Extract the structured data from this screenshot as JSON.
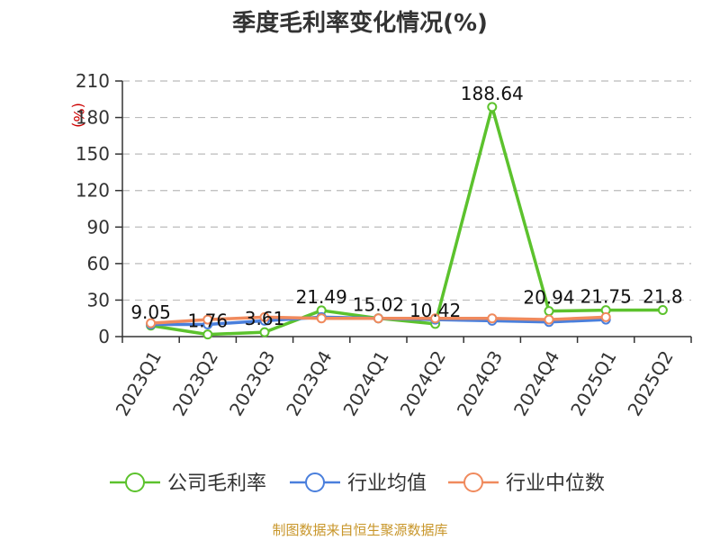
{
  "chart_data": {
    "type": "line",
    "title": "季度毛利率变化情况(%)",
    "ylabel": "(%)",
    "xlabel": "",
    "ylim": [
      0,
      210
    ],
    "yticks": [
      0,
      30,
      60,
      90,
      120,
      150,
      180,
      210
    ],
    "grid": true,
    "legend_position": "bottom",
    "categories": [
      "2023Q1",
      "2023Q2",
      "2023Q3",
      "2023Q4",
      "2024Q1",
      "2024Q2",
      "2024Q3",
      "2024Q4",
      "2025Q1",
      "2025Q2"
    ],
    "series": [
      {
        "name": "公司毛利率",
        "color": "#5cc22d",
        "values": [
          9.05,
          1.76,
          3.61,
          21.49,
          15.02,
          10.42,
          188.64,
          20.94,
          21.75,
          21.8
        ],
        "labels": [
          "9.05",
          "1.76",
          "3.61",
          "21.49",
          "15.02",
          "10.42",
          "188.64",
          "20.94",
          "21.75",
          "21.8"
        ]
      },
      {
        "name": "行业均值",
        "color": "#4a7fdc",
        "values": [
          10,
          10,
          13,
          16,
          15,
          14,
          13,
          12,
          14,
          null
        ]
      },
      {
        "name": "行业中位数",
        "color": "#f08a5d",
        "values": [
          11,
          14,
          16,
          15,
          15,
          15,
          15,
          14,
          16,
          null
        ]
      }
    ],
    "source": "制图数据来自恒生聚源数据库"
  }
}
